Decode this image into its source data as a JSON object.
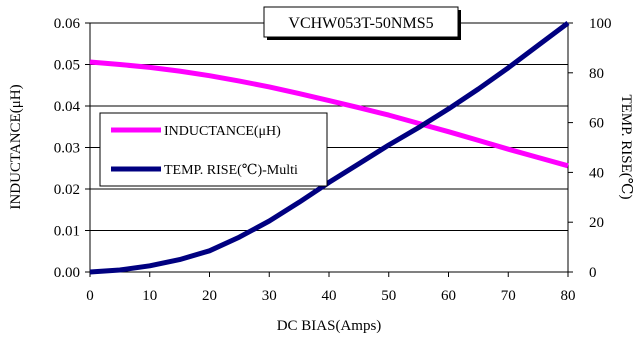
{
  "chart_data": {
    "type": "line",
    "title": "VCHW053T-50NMS5",
    "xlabel": "DC BIAS(Amps)",
    "ylabel_left": "INDUCTANCE(μH)",
    "ylabel_right": "TEMP. RISE(℃)",
    "xlim": [
      0,
      80
    ],
    "ylim_left": [
      0,
      0.06
    ],
    "ylim_right": [
      0,
      100
    ],
    "x_ticks": [
      "0",
      "10",
      "20",
      "30",
      "40",
      "50",
      "60",
      "70",
      "80"
    ],
    "y_left_ticks": [
      "0.00",
      "0.01",
      "0.02",
      "0.03",
      "0.04",
      "0.05",
      "0.06"
    ],
    "y_right_ticks": [
      "0",
      "20",
      "40",
      "60",
      "80",
      "100"
    ],
    "grid": "horizontal",
    "legend_position": "middle-left",
    "series": [
      {
        "name": "INDUCTANCE(μH)",
        "axis": "left",
        "color": "#ff00ff",
        "x": [
          0,
          5,
          10,
          15,
          20,
          25,
          30,
          35,
          40,
          45,
          50,
          55,
          60,
          65,
          70,
          75,
          80
        ],
        "y": [
          0.0506,
          0.05,
          0.0493,
          0.0484,
          0.0473,
          0.046,
          0.0446,
          0.043,
          0.0413,
          0.0396,
          0.0378,
          0.0358,
          0.0338,
          0.0317,
          0.0296,
          0.0276,
          0.0256
        ]
      },
      {
        "name": "TEMP. RISE(℃)-Multi",
        "axis": "right",
        "color": "#000080",
        "x": [
          0,
          5,
          10,
          15,
          20,
          25,
          30,
          35,
          40,
          45,
          50,
          55,
          60,
          65,
          70,
          75,
          80
        ],
        "y": [
          0,
          0.8,
          2.5,
          5,
          8.5,
          14,
          20.5,
          28,
          36,
          43.5,
          51,
          58,
          65.5,
          73.5,
          82,
          91,
          100
        ]
      }
    ]
  }
}
